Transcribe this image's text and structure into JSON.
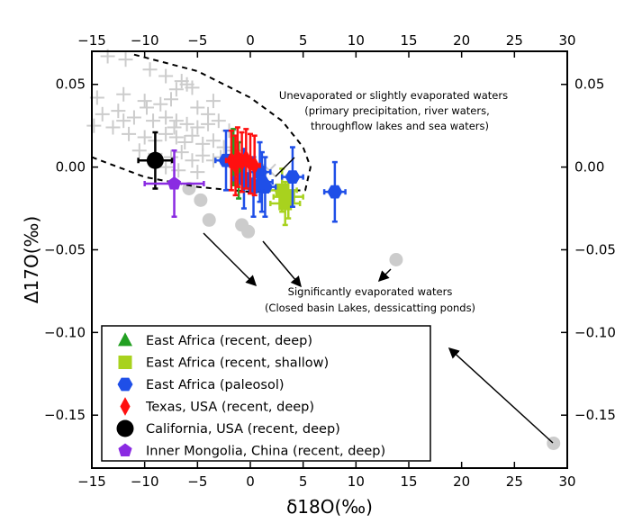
{
  "chart_data": {
    "type": "scatter",
    "xlabel": "δ18O(‰)",
    "ylabel": "Δ17O(‰)",
    "xlim": [
      -15,
      30
    ],
    "ylim": [
      -0.182,
      0.07
    ],
    "xticks": [
      -15,
      -10,
      -5,
      0,
      5,
      10,
      15,
      20,
      25,
      30
    ],
    "xtick_labels": [
      "−15",
      "−10",
      "−5",
      "0",
      "5",
      "10",
      "15",
      "20",
      "25",
      "30"
    ],
    "yticks": [
      0.05,
      0.0,
      -0.05,
      -0.1,
      -0.15
    ],
    "ytick_labels": [
      "0.05",
      "0.00",
      "−0.05",
      "−0.10",
      "−0.15"
    ],
    "grid": false,
    "legend_position": "bottom-left",
    "annotations": [
      {
        "id": "unevap",
        "lines": [
          "Unevaporated or slightly evaporated waters",
          "(primary precipitation, river waters,",
          "throughflow lakes and sea waters)"
        ]
      },
      {
        "id": "evap",
        "lines": [
          "Significantly evaporated waters",
          "(Closed basin Lakes, dessicatting ponds)"
        ]
      }
    ],
    "envelope": [
      [
        -11,
        0.068
      ],
      [
        -5,
        0.058
      ],
      [
        0,
        0.042
      ],
      [
        3,
        0.028
      ],
      [
        5,
        0.012
      ],
      [
        5.7,
        0.0
      ],
      [
        5.2,
        -0.014
      ],
      [
        0,
        -0.015
      ],
      [
        -5,
        -0.012
      ],
      [
        -10,
        -0.006
      ],
      [
        -15,
        0.006
      ]
    ],
    "background_series": [
      {
        "name": "gray-crosses",
        "color": "#cccccc",
        "marker": "plus",
        "points": [
          [
            -13.5,
            0.067
          ],
          [
            -11.8,
            0.065
          ],
          [
            -9.5,
            0.059
          ],
          [
            -8,
            0.055
          ],
          [
            -6.5,
            0.052
          ],
          [
            -6,
            0.05
          ],
          [
            -7,
            0.047
          ],
          [
            -5.5,
            0.048
          ],
          [
            -14.5,
            0.042
          ],
          [
            -12,
            0.044
          ],
          [
            -10,
            0.04
          ],
          [
            -8.5,
            0.038
          ],
          [
            -7.5,
            0.041
          ],
          [
            -5,
            0.036
          ],
          [
            -3.5,
            0.04
          ],
          [
            -14,
            0.032
          ],
          [
            -12.5,
            0.034
          ],
          [
            -11,
            0.03
          ],
          [
            -9.2,
            0.028
          ],
          [
            -8,
            0.03
          ],
          [
            -7,
            0.028
          ],
          [
            -6,
            0.026
          ],
          [
            -5,
            0.024
          ],
          [
            -4,
            0.026
          ],
          [
            -3,
            0.028
          ],
          [
            -2,
            0.022
          ],
          [
            -14.8,
            0.025
          ],
          [
            -13,
            0.024
          ],
          [
            -11.5,
            0.02
          ],
          [
            -10,
            0.018
          ],
          [
            -9,
            0.016
          ],
          [
            -8,
            0.02
          ],
          [
            -7,
            0.018
          ],
          [
            -6.2,
            0.015
          ],
          [
            -5.5,
            0.019
          ],
          [
            -4.5,
            0.014
          ],
          [
            -3.5,
            0.016
          ],
          [
            -2.5,
            0.012
          ],
          [
            -1.5,
            0.01
          ],
          [
            -10.5,
            0.01
          ],
          [
            -9,
            0.008
          ],
          [
            -7.5,
            0.006
          ],
          [
            -6.5,
            0.009
          ],
          [
            -5.5,
            0.004
          ],
          [
            -4.5,
            0.007
          ],
          [
            -3.5,
            0.004
          ],
          [
            -2.8,
            0.006
          ],
          [
            -8,
            0.0
          ],
          [
            -6.8,
            -0.002
          ],
          [
            -5,
            -0.003
          ],
          [
            -7.2,
            0.024
          ],
          [
            -4,
            0.032
          ],
          [
            -12,
            0.028
          ],
          [
            -9.8,
            0.036
          ]
        ]
      },
      {
        "name": "gray-x",
        "color": "#cccccc",
        "marker": "x",
        "points": [
          [
            1.8,
            -0.002
          ]
        ]
      },
      {
        "name": "gray-circles",
        "color": "#cccccc",
        "marker": "circle",
        "points": [
          [
            -5.8,
            -0.013
          ],
          [
            -4.7,
            -0.02
          ],
          [
            -3.9,
            -0.032
          ],
          [
            -0.8,
            -0.035
          ],
          [
            -0.2,
            -0.039
          ],
          [
            13.8,
            -0.056
          ],
          [
            28.7,
            -0.167
          ]
        ]
      }
    ],
    "series": [
      {
        "name": "East Africa (recent, deep)",
        "color": "#22a022",
        "marker": "triangle",
        "points": [
          [
            -1.6,
            0.006
          ],
          [
            -1.1,
            -0.002
          ]
        ],
        "yerr": 0.017,
        "xerr": 0.6
      },
      {
        "name": "East Africa (recent, shallow)",
        "color": "#a8d21e",
        "marker": "square",
        "points": [
          [
            3,
            -0.014
          ],
          [
            3.3,
            -0.022
          ],
          [
            3.6,
            -0.018
          ]
        ],
        "yerr": 0.013,
        "xerr": 1.4
      },
      {
        "name": "East Africa (paleosol)",
        "color": "#1f4fe8",
        "marker": "hexagon",
        "points": [
          [
            -2.3,
            0.004
          ],
          [
            -0.6,
            -0.007
          ],
          [
            0.9,
            -0.003
          ],
          [
            1.4,
            -0.012
          ],
          [
            0.3,
            -0.012
          ],
          [
            4,
            -0.006
          ],
          [
            8,
            -0.015
          ],
          [
            1.1,
            -0.009
          ]
        ],
        "yerr": 0.018,
        "xerr": 1.0
      },
      {
        "name": "Texas, USA (recent, deep)",
        "color": "#ff1010",
        "marker": "diamond",
        "points": [
          [
            -1.8,
            0.004
          ],
          [
            -1.2,
            0.006
          ],
          [
            -0.8,
            0.003
          ],
          [
            -0.4,
            0.005
          ],
          [
            0,
            0.002
          ],
          [
            0.4,
            0.001
          ],
          [
            -1.4,
            0.001
          ]
        ],
        "yerr": 0.018,
        "xerr": 0.5
      },
      {
        "name": "California, USA (recent, deep)",
        "color": "#000000",
        "marker": "circle",
        "points": [
          [
            -9,
            0.004
          ]
        ],
        "yerr": 0.017,
        "xerr": 1.6
      },
      {
        "name": "Inner Mongolia, China (recent, deep)",
        "color": "#8a2be2",
        "marker": "pentagon",
        "points": [
          [
            -7.2,
            -0.01
          ]
        ],
        "yerr": 0.02,
        "xerr": 2.8
      }
    ]
  }
}
